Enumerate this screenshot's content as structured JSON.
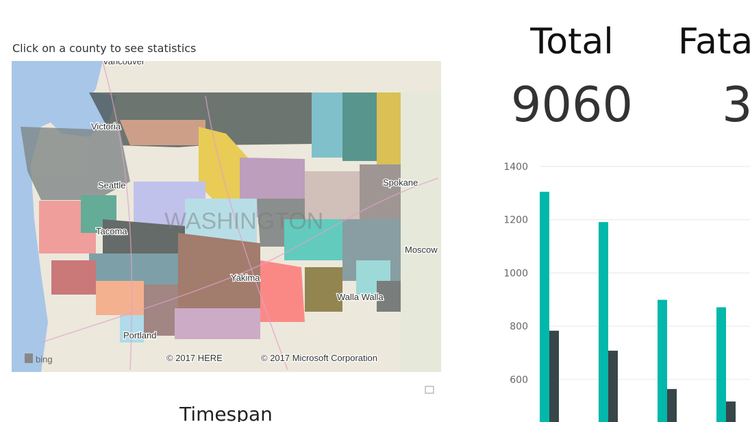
{
  "instruction": "Click on a county to see statistics",
  "map": {
    "labels": [
      "Vancouver",
      "Victoria",
      "Seattle",
      "Spokane",
      "Tacoma",
      "WASHINGTON",
      "Moscow",
      "Yakima",
      "Walla Walla",
      "Portland"
    ],
    "provider": "bing",
    "copyright": [
      "© 2017 HERE",
      "© 2017 Microsoft Corporation"
    ]
  },
  "timespan_title": "Timespan",
  "cards": [
    {
      "label": "Total",
      "value": "9060"
    },
    {
      "label": "Fatal",
      "value": "3"
    }
  ],
  "chart_data": {
    "type": "bar",
    "categories": [
      null,
      null,
      null,
      null
    ],
    "series": [
      {
        "color": "#01b8aa",
        "values": [
          1305,
          1191,
          899,
          871
        ]
      },
      {
        "color": "#374649",
        "values": [
          783,
          708,
          564,
          517
        ]
      }
    ],
    "ylim": [
      440,
      1400
    ],
    "yticks": [
      600,
      800,
      1000,
      1200,
      1400
    ],
    "grid": true
  }
}
